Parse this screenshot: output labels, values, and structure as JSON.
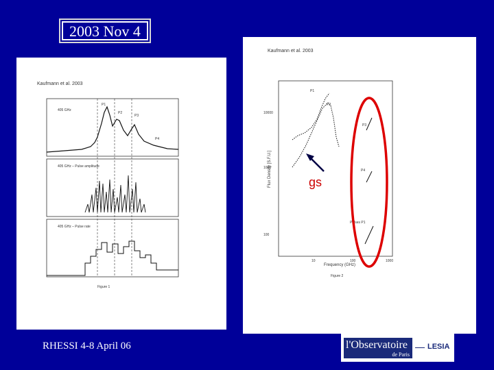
{
  "slide": {
    "title": "2003 Nov 4",
    "footer": "RHESSI 4-8 April  06",
    "annotation": "gs"
  },
  "left_figure": {
    "citation": "Kaufmann et al. 2003",
    "panel_labels": [
      "405 GHz",
      "405 GHz – Pulse amplitude",
      "405 GHz – Pulse rate"
    ],
    "peak_labels": [
      "P1",
      "P2",
      "P3",
      "P4"
    ],
    "caption": "Figure 1"
  },
  "right_figure": {
    "citation": "Kaufmann et al. 2003",
    "ylabel": "Flux Density [S.F.U.]",
    "xlabel": "Frequency (GHz)",
    "caption": "Figure 2",
    "curve_labels": [
      "P1",
      "P2",
      "P3",
      "P4",
      "Pulses P1"
    ],
    "x_ticks": [
      "10",
      "100",
      "1000"
    ],
    "y_ticks": [
      "10000",
      "1000",
      "100"
    ]
  },
  "logo": {
    "name": "l'Observatoire",
    "sub": "de Paris",
    "partner": "LESIA"
  },
  "colors": {
    "background": "#000099",
    "highlight": "#dd0000",
    "text": "#ffffff"
  }
}
